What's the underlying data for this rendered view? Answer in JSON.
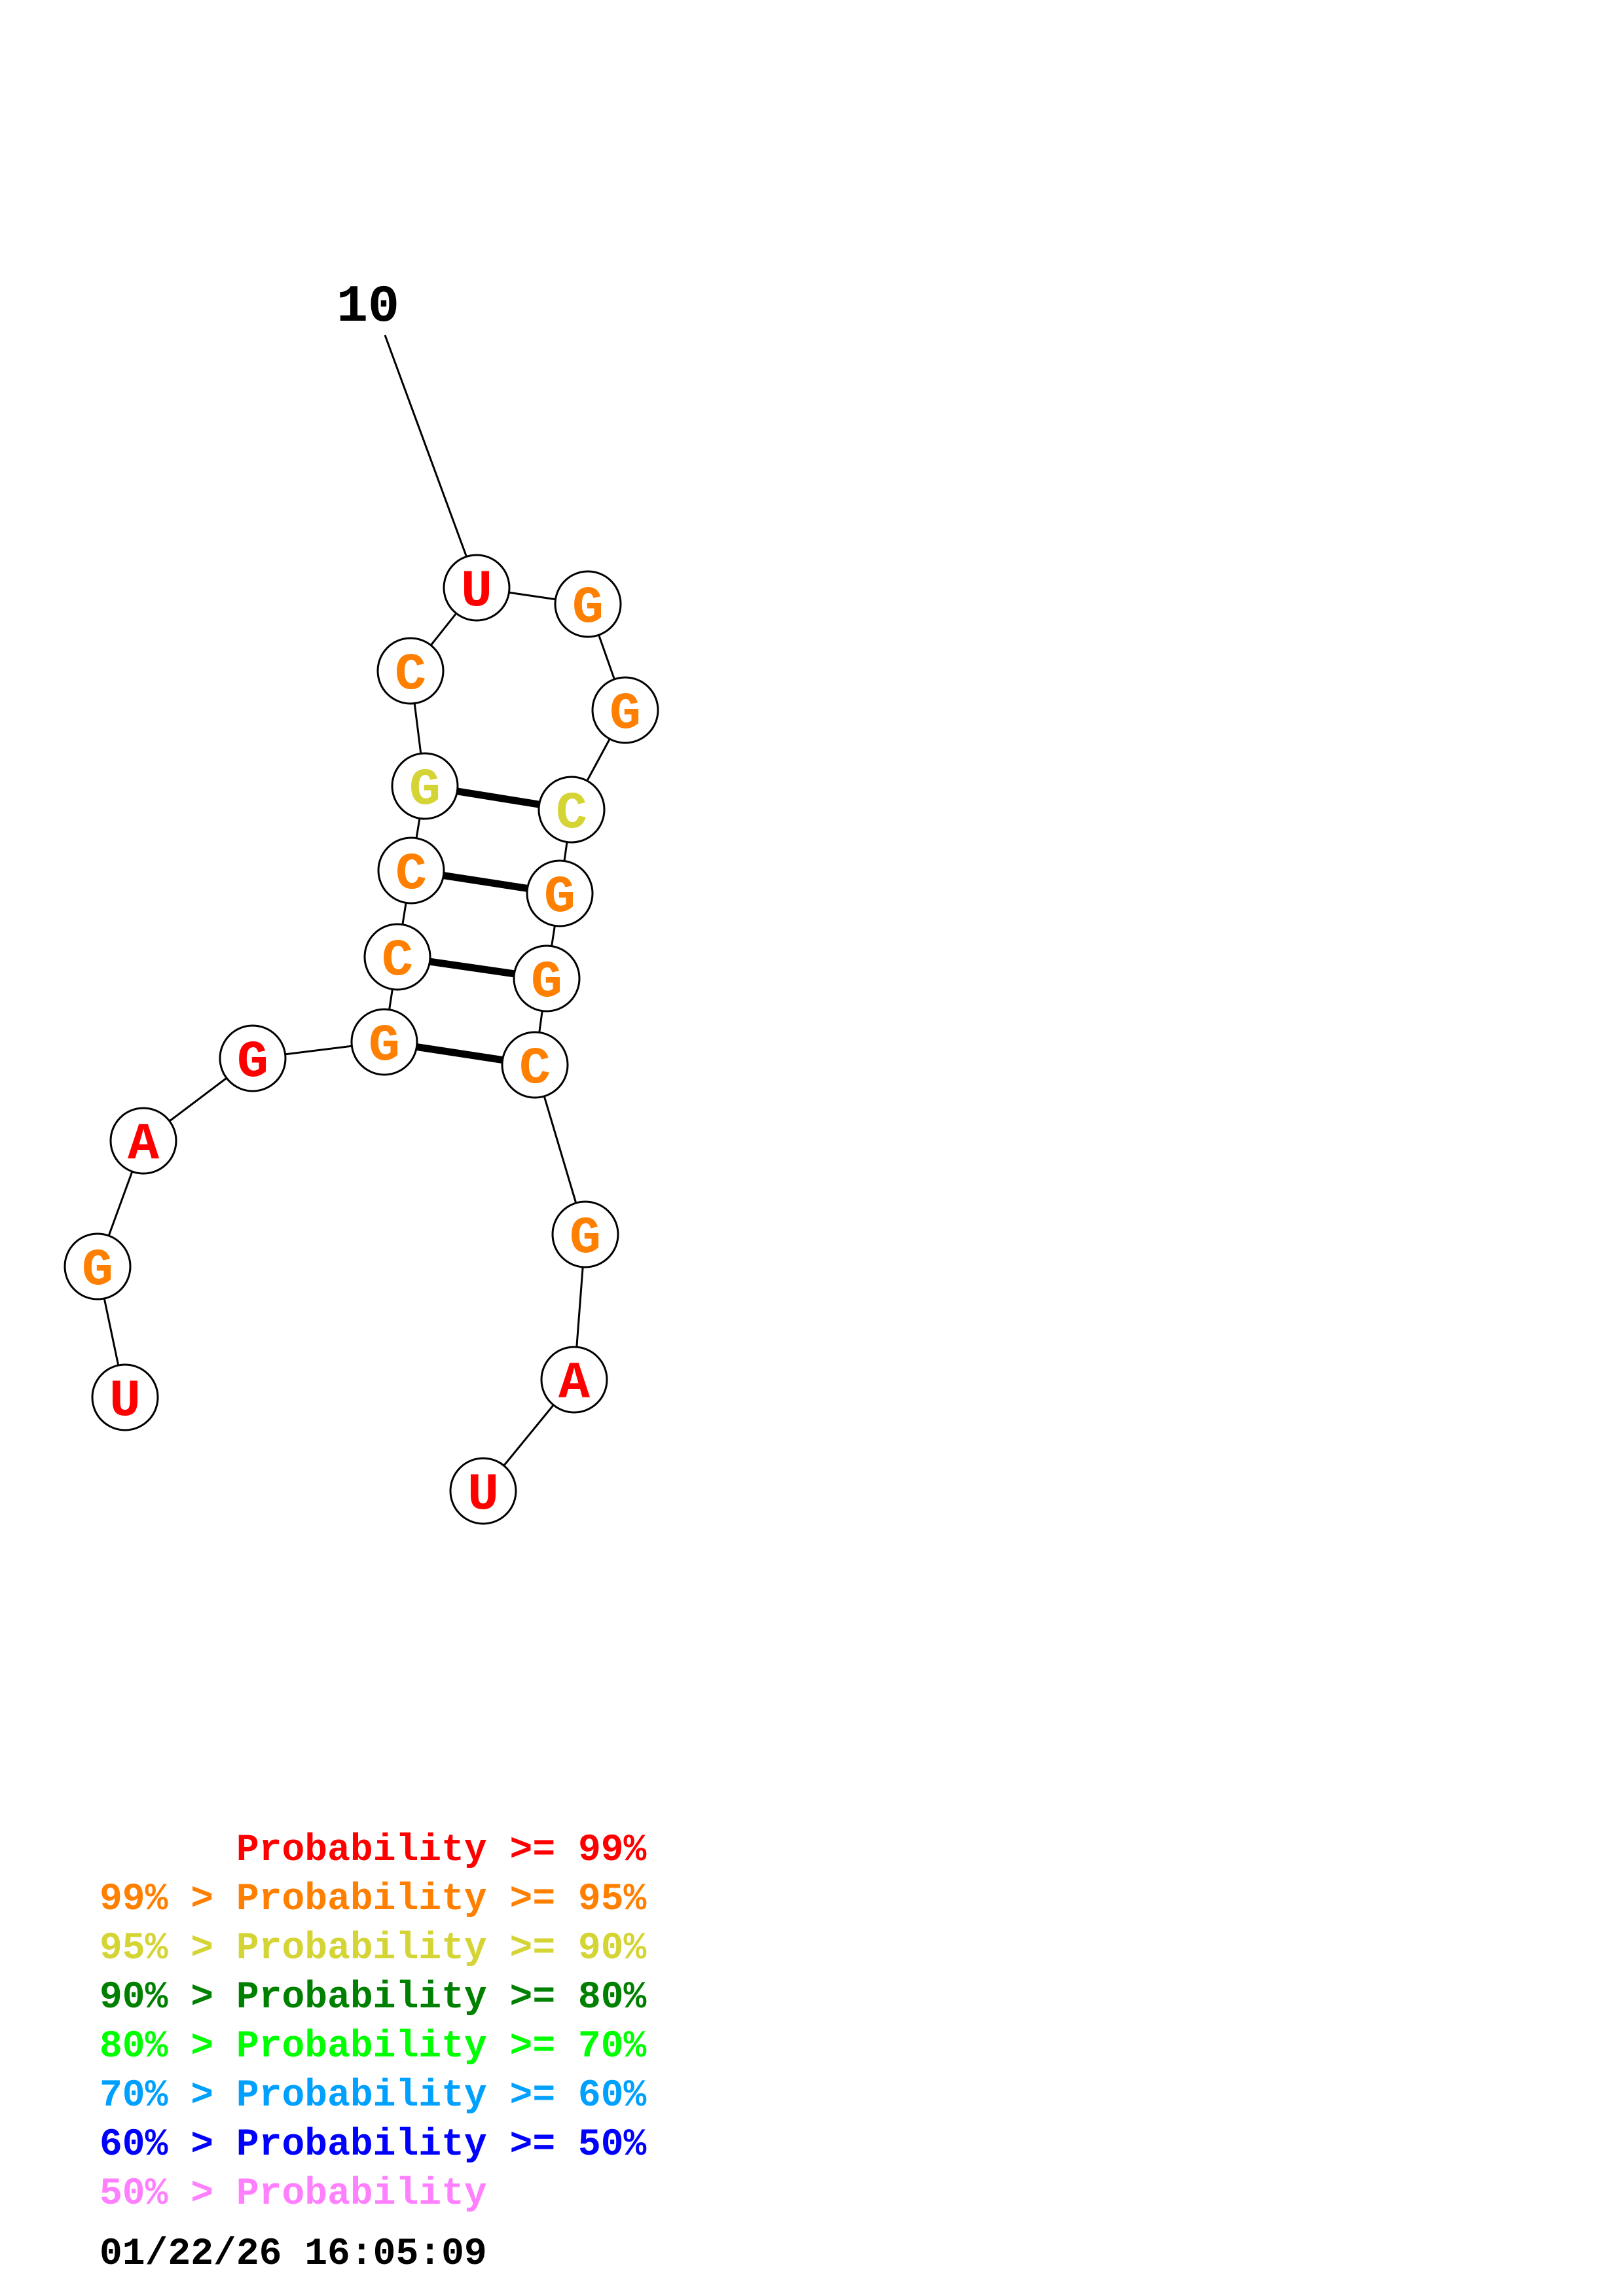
{
  "position_label": "10",
  "nucleotides": [
    {
      "base": "U",
      "color": "#ff0000"
    },
    {
      "base": "G",
      "color": "#ff7f00"
    },
    {
      "base": "A",
      "color": "#ff0000"
    },
    {
      "base": "G",
      "color": "#ff0000"
    },
    {
      "base": "G",
      "color": "#ff7f00"
    },
    {
      "base": "C",
      "color": "#ff7f00"
    },
    {
      "base": "C",
      "color": "#ff7f00"
    },
    {
      "base": "G",
      "color": "#d4d435"
    },
    {
      "base": "C",
      "color": "#ff7f00"
    },
    {
      "base": "U",
      "color": "#ff0000"
    },
    {
      "base": "G",
      "color": "#ff7f00"
    },
    {
      "base": "G",
      "color": "#ff7f00"
    },
    {
      "base": "C",
      "color": "#d4d435"
    },
    {
      "base": "G",
      "color": "#ff7f00"
    },
    {
      "base": "G",
      "color": "#ff7f00"
    },
    {
      "base": "C",
      "color": "#ff7f00"
    },
    {
      "base": "G",
      "color": "#ff7f00"
    },
    {
      "base": "A",
      "color": "#ff0000"
    },
    {
      "base": "U",
      "color": "#ff0000"
    }
  ],
  "base_pairs": [
    [
      5,
      16
    ],
    [
      6,
      15
    ],
    [
      7,
      14
    ],
    [
      8,
      13
    ]
  ],
  "legend": [
    {
      "prefix": "    ",
      "mid": "  ",
      "text": "Probability >= 99%",
      "color": "#ff0000"
    },
    {
      "prefix": "99%",
      "mid": " > ",
      "text": "Probability >= 95%",
      "color": "#ff7f00"
    },
    {
      "prefix": "95%",
      "mid": " > ",
      "text": "Probability >= 90%",
      "color": "#d4d435"
    },
    {
      "prefix": "90%",
      "mid": " > ",
      "text": "Probability >= 80%",
      "color": "#008000"
    },
    {
      "prefix": "80%",
      "mid": " > ",
      "text": "Probability >= 70%",
      "color": "#00ff00"
    },
    {
      "prefix": "70%",
      "mid": " > ",
      "text": "Probability >= 60%",
      "color": "#00a0ff"
    },
    {
      "prefix": "60%",
      "mid": " > ",
      "text": "Probability >= 50%",
      "color": "#0000ff"
    },
    {
      "prefix": "50%",
      "mid": " > ",
      "text": "Probability",
      "color": "#ff80ff"
    }
  ],
  "timestamp": "01/22/26 16:05:09"
}
